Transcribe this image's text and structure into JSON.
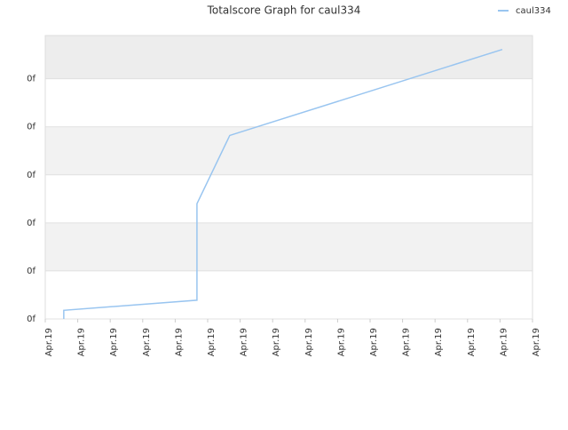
{
  "chart_data": {
    "type": "line",
    "title": "Totalscore Graph for caul334",
    "x": [
      0.57,
      0.57,
      4.67,
      4.67,
      5.68,
      14.07
    ],
    "series": [
      {
        "name": "caul334",
        "color": "#99c5f0",
        "values": [
          0,
          0.18,
          0.39,
          2.4,
          3.82,
          5.61
        ]
      }
    ],
    "xlim": [
      0,
      15
    ],
    "xticks": [
      {
        "value": 0,
        "label": "Apr.19"
      },
      {
        "value": 1,
        "label": "Apr.19"
      },
      {
        "value": 2,
        "label": "Apr.19"
      },
      {
        "value": 3,
        "label": "Apr.19"
      },
      {
        "value": 4,
        "label": "Apr.19"
      },
      {
        "value": 5,
        "label": "Apr.19"
      },
      {
        "value": 6,
        "label": "Apr.19"
      },
      {
        "value": 7,
        "label": "Apr.19"
      },
      {
        "value": 8,
        "label": "Apr.19"
      },
      {
        "value": 9,
        "label": "Apr.19"
      },
      {
        "value": 10,
        "label": "Apr.19"
      },
      {
        "value": 11,
        "label": "Apr.19"
      },
      {
        "value": 12,
        "label": "Apr.19"
      },
      {
        "value": 13,
        "label": "Apr.19"
      },
      {
        "value": 14,
        "label": "Apr.19"
      },
      {
        "value": 15,
        "label": "Apr.19"
      }
    ],
    "ylim": [
      0,
      5.9
    ],
    "yticks": [
      {
        "value": 0,
        "label": "0f"
      },
      {
        "value": 1,
        "label": "0f"
      },
      {
        "value": 2,
        "label": "0f"
      },
      {
        "value": 3,
        "label": "0f"
      },
      {
        "value": 4,
        "label": "0f"
      },
      {
        "value": 5,
        "label": "0f"
      }
    ],
    "grid": true,
    "legend": "top-right"
  }
}
